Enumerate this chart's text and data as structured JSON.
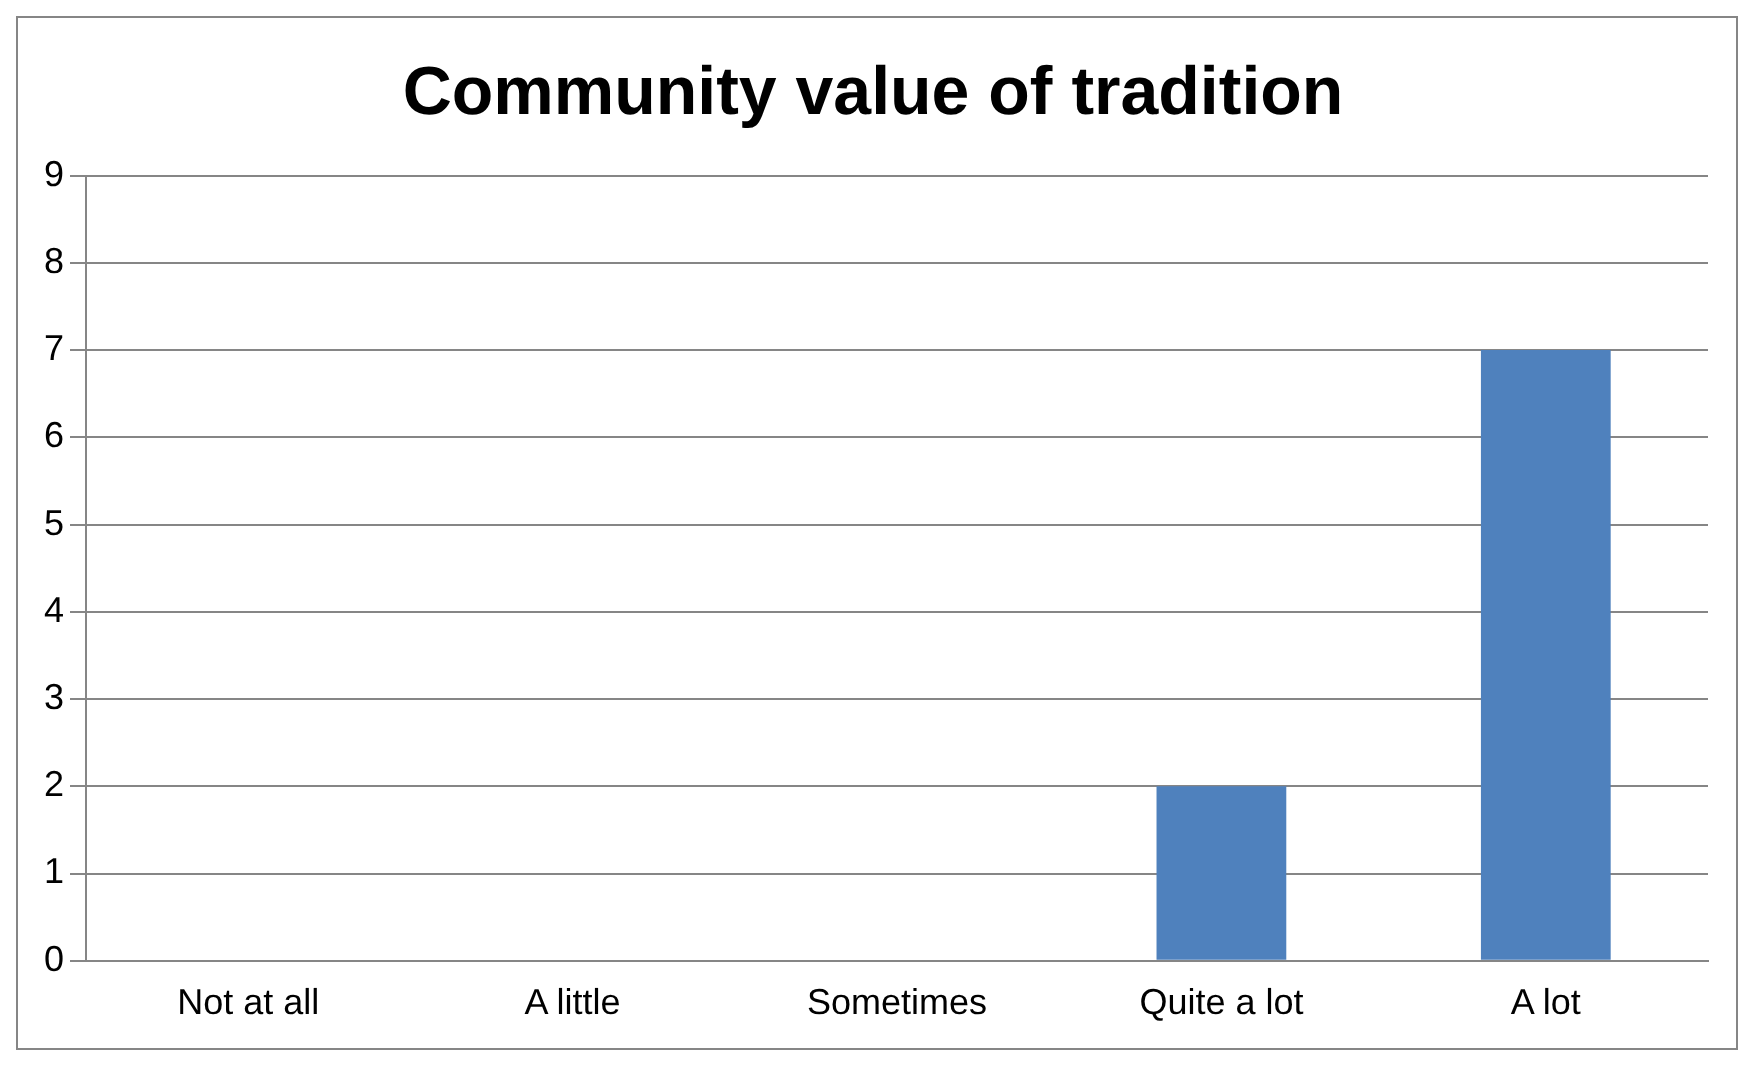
{
  "chart_data": {
    "type": "bar",
    "title": "Community value of tradition",
    "categories": [
      "Not at all",
      "A little",
      "Sometimes",
      "Quite a lot",
      "A lot"
    ],
    "values": [
      0,
      0,
      0,
      2,
      7
    ],
    "color": "#4f81bd",
    "ylim": [
      0,
      9
    ],
    "yticks": [
      0,
      1,
      2,
      3,
      4,
      5,
      6,
      7,
      8,
      9
    ],
    "grid": "y",
    "legend": false
  }
}
